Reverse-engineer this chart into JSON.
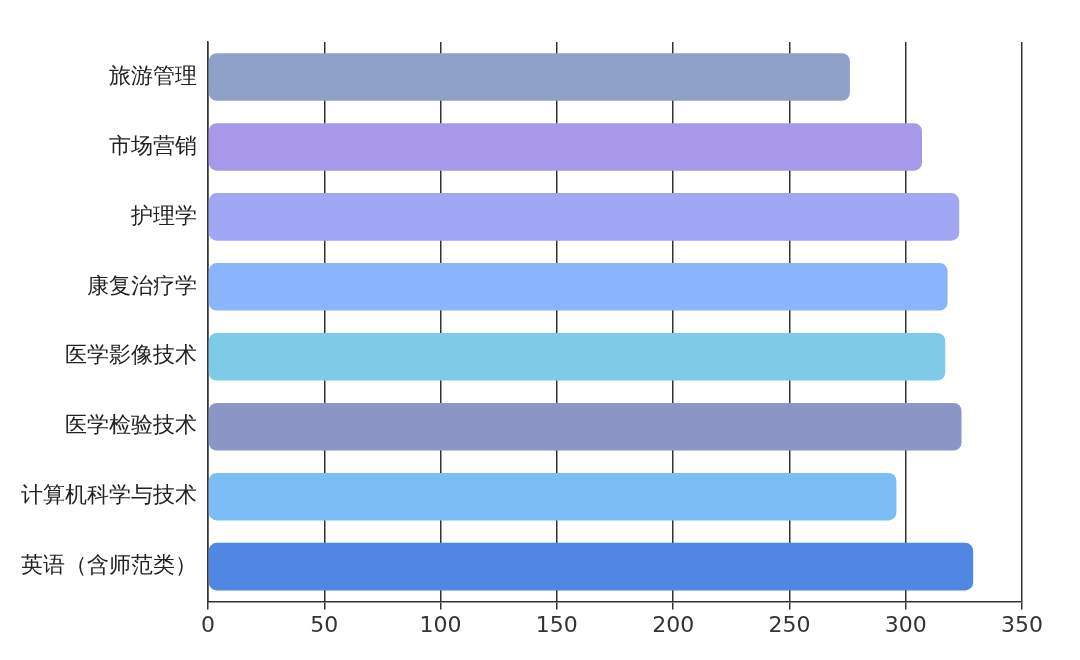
{
  "chart_data": {
    "type": "bar",
    "orientation": "horizontal",
    "categories": [
      "旅游管理",
      "市场营销",
      "护理学",
      "康复治疗学",
      "医学影像技术",
      "医学检验技术",
      "计算机科学与技术",
      "英语（含师范类）"
    ],
    "values": [
      276,
      307,
      323,
      318,
      317,
      324,
      296,
      329
    ],
    "colors": [
      "#8fa1c7",
      "#a898ea",
      "#a1a7f5",
      "#8ab4fb",
      "#7dcbe6",
      "#8b96c4",
      "#7bbdf5",
      "#4f87e3"
    ],
    "xlim": [
      0,
      350
    ],
    "xticks": [
      0,
      50,
      100,
      150,
      200,
      250,
      300,
      350
    ],
    "grid": "x"
  }
}
